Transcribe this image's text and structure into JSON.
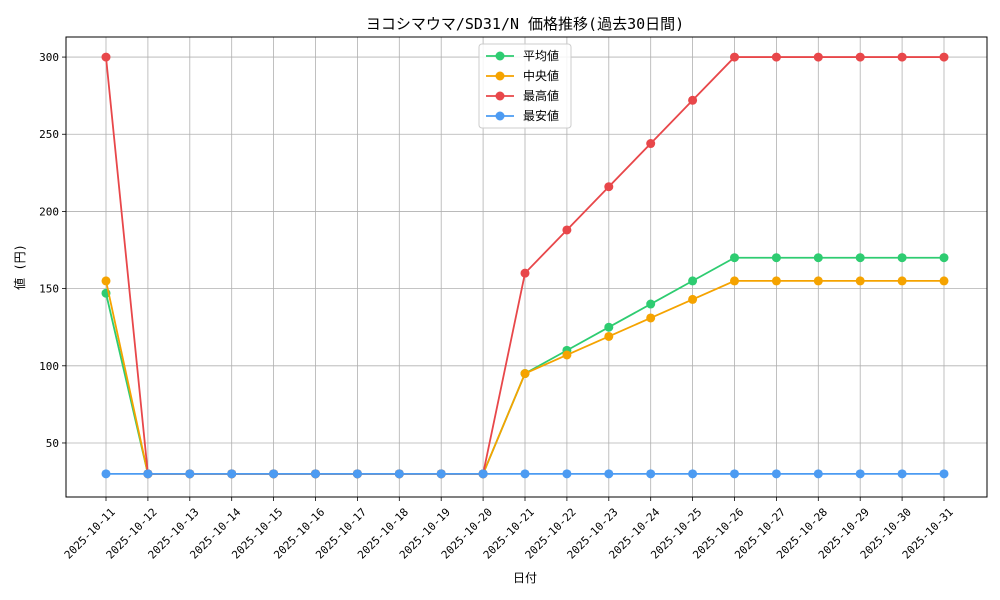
{
  "chart_data": {
    "type": "line",
    "title": "ヨコシマウマ/SD31/N 価格推移(過去30日間)",
    "xlabel": "日付",
    "ylabel": "値 (円)",
    "ylim": [
      15,
      313
    ],
    "yticks": [
      50,
      100,
      150,
      200,
      250,
      300
    ],
    "grid": true,
    "legend_position": "top-center",
    "x": [
      "2025-10-11",
      "2025-10-12",
      "2025-10-13",
      "2025-10-14",
      "2025-10-15",
      "2025-10-16",
      "2025-10-17",
      "2025-10-18",
      "2025-10-19",
      "2025-10-20",
      "2025-10-21",
      "2025-10-22",
      "2025-10-23",
      "2025-10-24",
      "2025-10-25",
      "2025-10-26",
      "2025-10-27",
      "2025-10-28",
      "2025-10-29",
      "2025-10-30",
      "2025-10-31"
    ],
    "series": [
      {
        "name": "平均値",
        "color": "#2ecc71",
        "values": [
          147,
          30,
          30,
          30,
          30,
          30,
          30,
          30,
          30,
          30,
          95,
          110,
          125,
          140,
          155,
          170,
          170,
          170,
          170,
          170,
          170
        ]
      },
      {
        "name": "中央値",
        "color": "#f5a300",
        "values": [
          155,
          30,
          30,
          30,
          30,
          30,
          30,
          30,
          30,
          30,
          95,
          107,
          119,
          131,
          143,
          155,
          155,
          155,
          155,
          155,
          155
        ]
      },
      {
        "name": "最高値",
        "color": "#e8474a",
        "values": [
          300,
          30,
          30,
          30,
          30,
          30,
          30,
          30,
          30,
          30,
          160,
          188,
          216,
          244,
          272,
          300,
          300,
          300,
          300,
          300,
          300
        ]
      },
      {
        "name": "最安値",
        "color": "#4c9bf2",
        "values": [
          30,
          30,
          30,
          30,
          30,
          30,
          30,
          30,
          30,
          30,
          30,
          30,
          30,
          30,
          30,
          30,
          30,
          30,
          30,
          30,
          30
        ]
      }
    ]
  }
}
